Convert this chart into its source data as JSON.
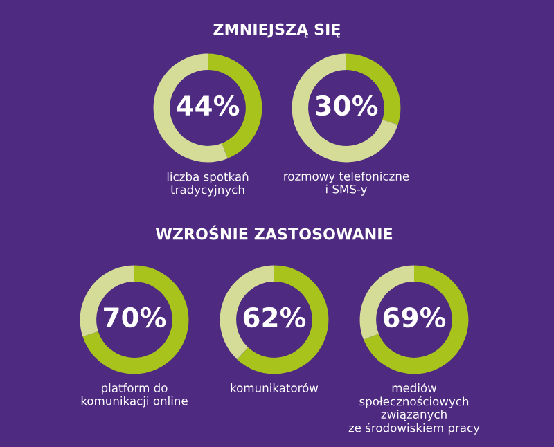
{
  "chart_data": [
    {
      "type": "donut",
      "title": "ZMNIEJSZĄ SIĘ",
      "categories": [
        null,
        null
      ],
      "values": [
        44,
        56
      ],
      "colors": [
        "#a8c41c",
        "#d4dc98"
      ],
      "value_labels": [
        "44%",
        null
      ],
      "annotations": [
        "liczba spotkań\ntradycyjnych"
      ]
    },
    {
      "type": "donut",
      "categories": [
        null,
        null
      ],
      "values": [
        30,
        70
      ],
      "colors": [
        "#a8c41c",
        "#d4dc98"
      ],
      "value_labels": [
        "30%",
        null
      ],
      "annotations": [
        "rozmowy telefoniczne\ni SMS-y"
      ]
    },
    {
      "type": "donut",
      "title": "WZROŚNIE ZASTOSOWANIE",
      "categories": [
        null,
        null
      ],
      "values": [
        70,
        30
      ],
      "colors": [
        "#a8c41c",
        "#d4dc98"
      ],
      "value_labels": [
        "70%",
        null
      ],
      "annotations": [
        "platform do\nkomunikacji online"
      ]
    },
    {
      "type": "donut",
      "categories": [
        null,
        null
      ],
      "values": [
        62,
        38
      ],
      "colors": [
        "#a8c41c",
        "#d4dc98"
      ],
      "value_labels": [
        "62%",
        null
      ],
      "annotations": [
        "komunikatorów"
      ]
    },
    {
      "type": "donut",
      "categories": [
        null,
        null
      ],
      "values": [
        69,
        31
      ],
      "colors": [
        "#a8c41c",
        "#d4dc98"
      ],
      "value_labels": [
        "69%",
        null
      ],
      "annotations": [
        "mediów\nspołecznościowych\nzwiązanych\nze środowiskiem pracy"
      ]
    }
  ]
}
